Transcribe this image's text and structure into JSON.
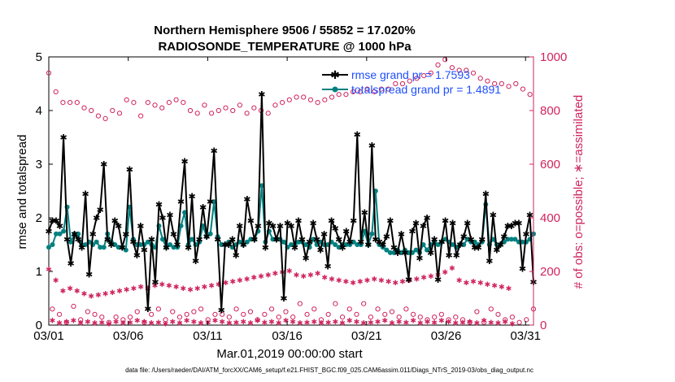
{
  "chart_data": {
    "type": "line",
    "title": "Northern Hemisphere 9506 / 55852 = 17.020%",
    "subtitle": "RADIOSONDE_TEMPERATURE @ 1000 hPa",
    "xlabel": "Mar.01,2019 00:00:00 start",
    "ylabel": "rmse and totalspread",
    "y2label": "# of obs: o=possible; ∗=assimilated",
    "xticks": [
      "03/01",
      "03/06",
      "03/11",
      "03/16",
      "03/21",
      "03/26",
      "03/31"
    ],
    "xtick_days": [
      0,
      5,
      10,
      15,
      20,
      25,
      30
    ],
    "xlim": [
      0,
      30.5
    ],
    "ylim": [
      0,
      5
    ],
    "yticks": [
      "0",
      "1",
      "2",
      "3",
      "4",
      "5"
    ],
    "y2lim": [
      0,
      1000
    ],
    "y2ticks": [
      "0",
      "200",
      "400",
      "600",
      "800",
      "1000"
    ],
    "footer": "data file: /Users/raeder/DAI/ATM_forcXX/CAM6_setup/f.e21.FHIST_BGC.f09_025.CAM6assim.011/Diags_NTrS_2019-03/obs_diag_output.nc",
    "legend": [
      {
        "label": "rmse grand pr = 1.7593",
        "color": "#000000"
      },
      {
        "label": "totalspread grand pr = 1.4891",
        "color": "#008080"
      }
    ],
    "colors": {
      "rmse": "#000000",
      "spread": "#008080",
      "obs": "#d0245c",
      "legend_text": "#1f4fff",
      "axis2": "#d0245c"
    },
    "series": [
      {
        "name": "rmse",
        "values": [
          1.75,
          1.95,
          1.95,
          1.85,
          3.5,
          1.6,
          1.15,
          1.7,
          1.6,
          1.45,
          2.45,
          0.95,
          1.7,
          2.0,
          2.15,
          3.0,
          1.6,
          1.5,
          1.95,
          1.85,
          1.45,
          1.7,
          2.9,
          1.55,
          1.3,
          1.85,
          1.4,
          0.3,
          1.6,
          0.8,
          2.25,
          2.0,
          1.45,
          2.05,
          1.7,
          1.5,
          2.3,
          3.05,
          1.45,
          2.4,
          1.2,
          1.6,
          2.2,
          1.65,
          2.3,
          3.25,
          1.6,
          0.28,
          1.5,
          1.5,
          1.6,
          1.3,
          1.85,
          1.5,
          2.35,
          1.95,
          1.6,
          1.85,
          4.3,
          1.45,
          1.9,
          1.85,
          1.6,
          1.85,
          0.5,
          1.9,
          1.85,
          1.45,
          1.95,
          1.6,
          1.25,
          1.55,
          1.9,
          1.6,
          1.4,
          1.7,
          1.1,
          1.95,
          1.8,
          1.6,
          1.45,
          1.75,
          1.55,
          1.95,
          3.55,
          1.55,
          2.1,
          1.5,
          3.35,
          1.6,
          1.55,
          1.5,
          1.65,
          1.95,
          1.45,
          1.35,
          1.7,
          1.35,
          0.85,
          1.75,
          1.9,
          1.25,
          1.85,
          2.0,
          1.35,
          1.6,
          0.85,
          1.55,
          1.95,
          1.3,
          1.9,
          1.3,
          1.5,
          1.65,
          1.9,
          1.6,
          1.45,
          1.45,
          1.6,
          2.45,
          1.2,
          2.05,
          1.4,
          1.5,
          1.65,
          1.85,
          1.85,
          1.9,
          1.9,
          1.05,
          1.7,
          2.05,
          0.8
        ]
      },
      {
        "name": "totalspread",
        "values": [
          1.45,
          1.5,
          1.7,
          1.7,
          1.75,
          2.2,
          1.55,
          1.7,
          1.7,
          1.5,
          1.5,
          1.55,
          1.5,
          1.55,
          1.45,
          1.45,
          1.7,
          1.55,
          1.5,
          1.45,
          1.45,
          1.4,
          2.2,
          1.6,
          1.5,
          1.5,
          1.5,
          1.55,
          1.5,
          1.45,
          1.85,
          1.6,
          1.45,
          1.5,
          1.45,
          1.45,
          1.85,
          2.1,
          1.5,
          1.6,
          1.5,
          1.55,
          1.85,
          1.65,
          1.7,
          2.3,
          1.65,
          1.5,
          1.5,
          1.55,
          1.45,
          1.5,
          1.55,
          1.5,
          1.55,
          1.6,
          1.6,
          1.75,
          2.6,
          1.55,
          1.75,
          1.6,
          1.6,
          1.6,
          1.55,
          1.45,
          1.5,
          1.5,
          1.55,
          1.55,
          1.5,
          1.45,
          1.6,
          1.5,
          1.55,
          1.5,
          1.5,
          1.55,
          1.5,
          1.45,
          1.5,
          1.5,
          1.5,
          1.55,
          1.5,
          1.5,
          1.75,
          1.5,
          1.7,
          2.5,
          1.5,
          1.45,
          1.4,
          1.35,
          1.35,
          1.4,
          1.35,
          1.4,
          1.35,
          1.35,
          1.4,
          1.35,
          1.5,
          1.4,
          1.5,
          1.55,
          1.5,
          1.55,
          1.6,
          1.55,
          1.5,
          1.45,
          1.5,
          1.5,
          1.6,
          1.55,
          1.55,
          1.5,
          1.55,
          2.25,
          1.5,
          1.6,
          1.5,
          1.5,
          1.55,
          1.6,
          1.6,
          1.6,
          1.55,
          1.55,
          1.55,
          1.6,
          1.7
        ]
      },
      {
        "name": "obs_possible",
        "axis": "right",
        "values": [
          940,
          60,
          870,
          40,
          830,
          10,
          830,
          70,
          830,
          20,
          810,
          50,
          800,
          40,
          780,
          30,
          770,
          10,
          800,
          30,
          790,
          20,
          840,
          30,
          830,
          50,
          780,
          10,
          830,
          40,
          820,
          60,
          810,
          20,
          830,
          50,
          840,
          30,
          830,
          40,
          800,
          50,
          790,
          60,
          820,
          20,
          790,
          40,
          800,
          40,
          810,
          30,
          800,
          60,
          820,
          40,
          790,
          50,
          810,
          20,
          800,
          40,
          790,
          60,
          820,
          30,
          830,
          50,
          840,
          30,
          850,
          80,
          850,
          40,
          840,
          60,
          830,
          20,
          840,
          40,
          850,
          80,
          860,
          30,
          860,
          60,
          870,
          40,
          870,
          80,
          880,
          30,
          870,
          60,
          880,
          40,
          880,
          50,
          900,
          30,
          900,
          60,
          910,
          40,
          920,
          30,
          930,
          20,
          940,
          30,
          970,
          40,
          990,
          20,
          960,
          30,
          950,
          20,
          950,
          10,
          940,
          50,
          920,
          10,
          910,
          60,
          900,
          40,
          900,
          20,
          890,
          30,
          900,
          10,
          880,
          20,
          860,
          60
        ]
      },
      {
        "name": "obs_assimilated",
        "axis": "right",
        "values": [
          210,
          20,
          170,
          10,
          130,
          15,
          140,
          20,
          130,
          10,
          120,
          15,
          110,
          10,
          115,
          12,
          120,
          8,
          125,
          15,
          130,
          10,
          135,
          12,
          140,
          20,
          145,
          15,
          140,
          10,
          150,
          12,
          155,
          8,
          150,
          15,
          145,
          10,
          140,
          20,
          135,
          15,
          140,
          10,
          145,
          12,
          150,
          20,
          155,
          15,
          160,
          10,
          165,
          12,
          170,
          15,
          175,
          10,
          180,
          20,
          185,
          12,
          190,
          15,
          195,
          10,
          200,
          20,
          205,
          15,
          190,
          10,
          185,
          12,
          190,
          15,
          195,
          10,
          180,
          12,
          175,
          15,
          170,
          10,
          165,
          20,
          160,
          15,
          165,
          10,
          170,
          12,
          175,
          15,
          170,
          20,
          165,
          10,
          160,
          15,
          165,
          12,
          170,
          20,
          175,
          10,
          180,
          15,
          185,
          12,
          190,
          20,
          200,
          15,
          215,
          10,
          170,
          12,
          160,
          15,
          165,
          10,
          160,
          20,
          155,
          12,
          150,
          10,
          145,
          15,
          140,
          8
        ]
      }
    ]
  }
}
